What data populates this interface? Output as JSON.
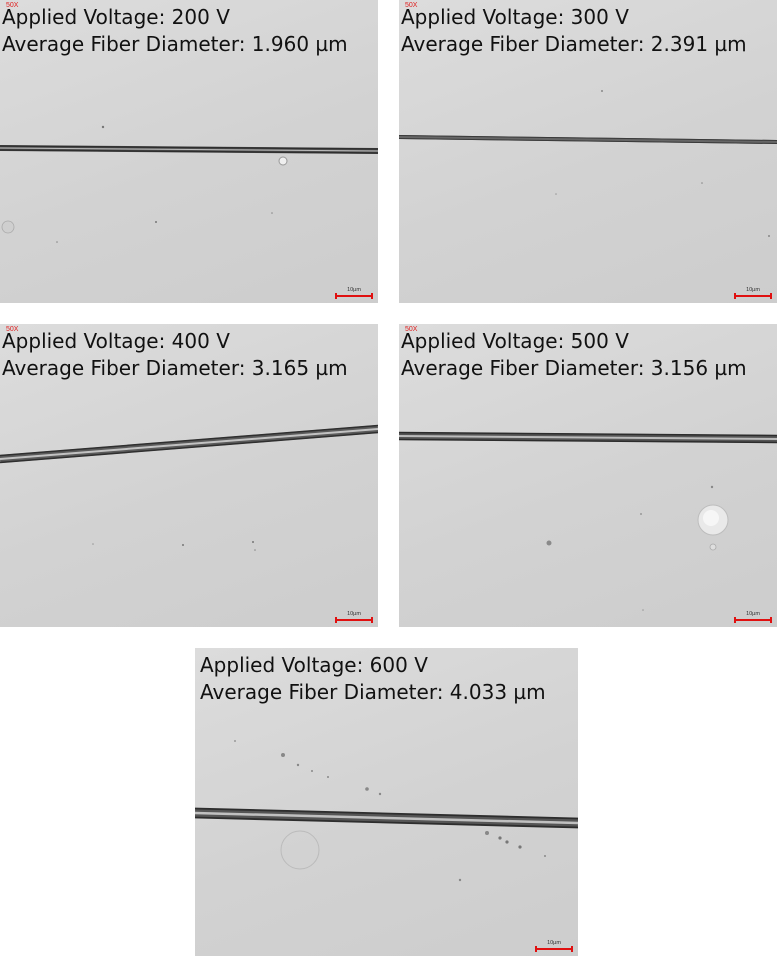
{
  "panels": [
    {
      "id": "p200",
      "magnification": "50X",
      "voltage_line": "Applied Voltage: 200 V",
      "diameter_line": "Average Fiber Diameter: 1.960 µm",
      "scale_label": "10µm"
    },
    {
      "id": "p300",
      "magnification": "50X",
      "voltage_line": "Applied Voltage: 300 V",
      "diameter_line": "Average Fiber Diameter: 2.391 µm",
      "scale_label": "10µm"
    },
    {
      "id": "p400",
      "magnification": "50X",
      "voltage_line": "Applied Voltage: 400 V",
      "diameter_line": "Average Fiber Diameter: 3.165 µm",
      "scale_label": "10µm"
    },
    {
      "id": "p500",
      "magnification": "50X",
      "voltage_line": "Applied Voltage: 500 V",
      "diameter_line": "Average Fiber Diameter: 3.156 µm",
      "scale_label": "10µm"
    },
    {
      "id": "p600",
      "magnification": "",
      "voltage_line": "Applied Voltage: 600 V",
      "diameter_line": "Average Fiber Diameter: 4.033 µm",
      "scale_label": "10µm"
    }
  ],
  "colors": {
    "scale_bar": "#e01010",
    "background": "#d4d4d4",
    "fiber": "#3a3a3a"
  }
}
